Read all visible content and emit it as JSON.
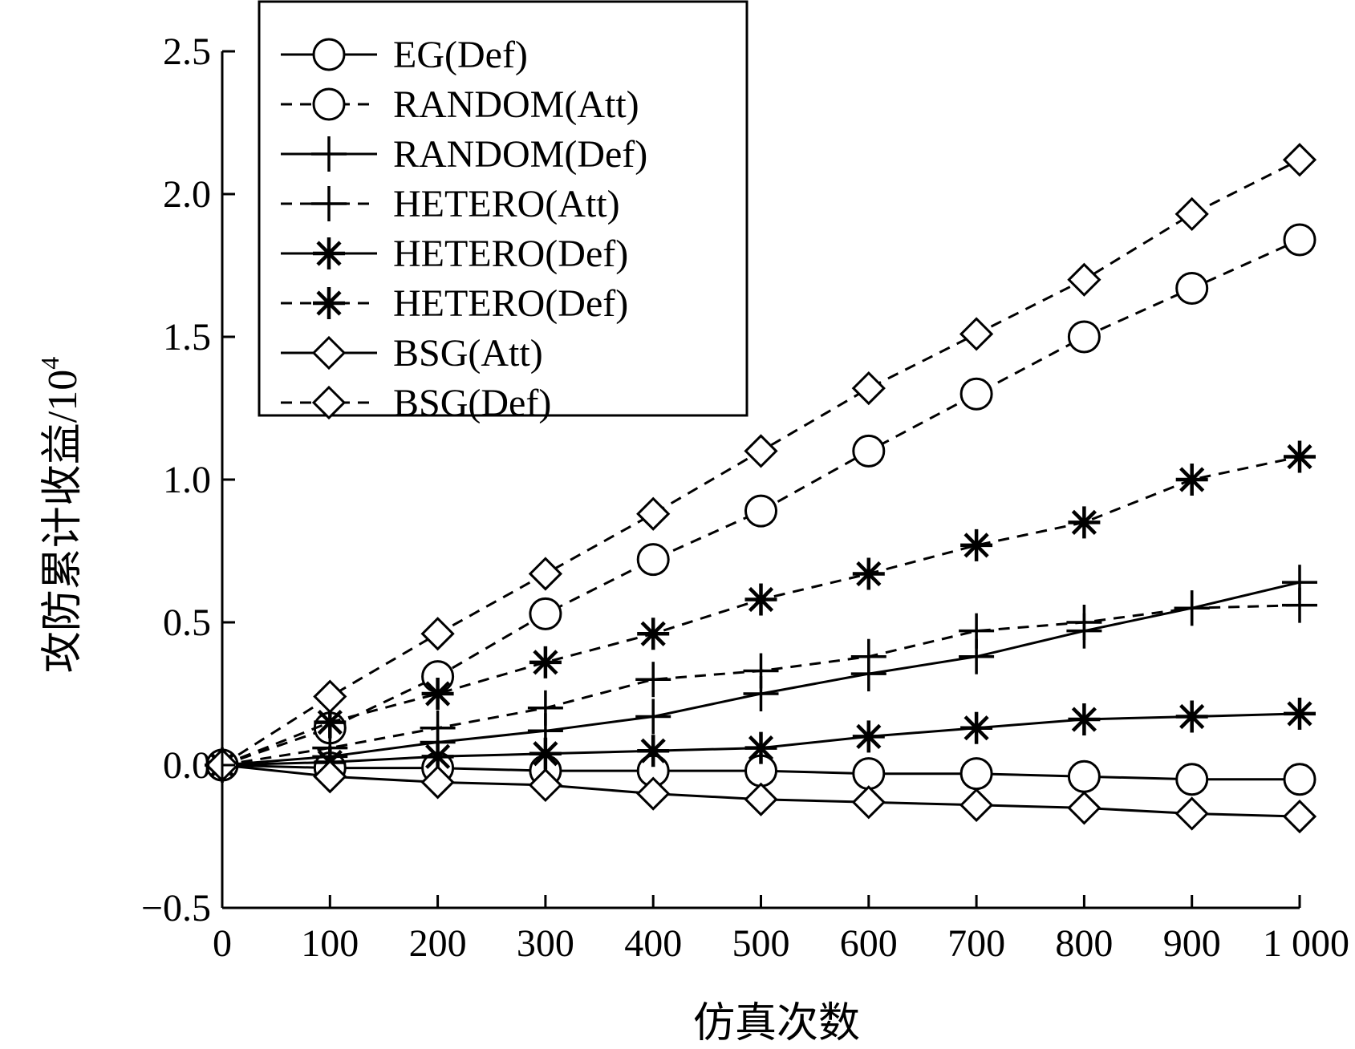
{
  "chart_data": {
    "type": "line",
    "xlabel": "仿真次数",
    "ylabel": "攻防累计收益/10",
    "ylabel_sup": "4",
    "xlim": [
      0,
      1000
    ],
    "ylim": [
      -0.5,
      2.5
    ],
    "x_ticks": [
      0,
      100,
      200,
      300,
      400,
      500,
      600,
      700,
      800,
      900,
      1000
    ],
    "x_tick_labels": [
      "0",
      "100",
      "200",
      "300",
      "400",
      "500",
      "600",
      "700",
      "800",
      "900",
      "1 000"
    ],
    "y_ticks": [
      -0.5,
      0.0,
      0.5,
      1.0,
      1.5,
      2.0,
      2.5
    ],
    "y_tick_labels": [
      "−0.5",
      "0.0",
      "0.5",
      "1.0",
      "1.5",
      "2.0",
      "2.5"
    ],
    "x": [
      0,
      100,
      200,
      300,
      400,
      500,
      600,
      700,
      800,
      900,
      1000
    ],
    "legend_position": "top-left",
    "series": [
      {
        "name": "EG(Def)",
        "line": "solid",
        "marker": "circle",
        "values": [
          0.0,
          -0.01,
          -0.01,
          -0.02,
          -0.02,
          -0.02,
          -0.03,
          -0.03,
          -0.04,
          -0.05,
          -0.05
        ]
      },
      {
        "name": "RANDOM(Att)",
        "line": "dashed",
        "marker": "circle",
        "values": [
          0.0,
          0.13,
          0.31,
          0.53,
          0.72,
          0.89,
          1.1,
          1.3,
          1.5,
          1.67,
          1.84
        ]
      },
      {
        "name": "RANDOM(Def)",
        "line": "solid",
        "marker": "plus",
        "values": [
          0.0,
          0.03,
          0.08,
          0.12,
          0.17,
          0.25,
          0.32,
          0.38,
          0.47,
          0.55,
          0.64
        ]
      },
      {
        "name": "HETERO(Att)",
        "line": "dashed",
        "marker": "plus",
        "values": [
          0.0,
          0.06,
          0.13,
          0.2,
          0.3,
          0.33,
          0.38,
          0.47,
          0.5,
          0.55,
          0.56
        ]
      },
      {
        "name": "HETERO(Def)",
        "line": "solid",
        "marker": "asterisk",
        "values": [
          0.0,
          0.01,
          0.03,
          0.04,
          0.05,
          0.06,
          0.1,
          0.13,
          0.16,
          0.17,
          0.18
        ]
      },
      {
        "name": "HETERO(Def)",
        "line": "dashed",
        "marker": "asterisk",
        "values": [
          0.0,
          0.15,
          0.25,
          0.36,
          0.46,
          0.58,
          0.67,
          0.77,
          0.85,
          1.0,
          1.08
        ]
      },
      {
        "name": "BSG(Att)",
        "line": "solid",
        "marker": "diamond",
        "values": [
          0.0,
          -0.04,
          -0.06,
          -0.07,
          -0.1,
          -0.12,
          -0.13,
          -0.14,
          -0.15,
          -0.17,
          -0.18
        ]
      },
      {
        "name": "BSG(Def)",
        "line": "dashed",
        "marker": "diamond",
        "values": [
          0.0,
          0.24,
          0.46,
          0.67,
          0.88,
          1.1,
          1.32,
          1.51,
          1.7,
          1.93,
          2.12
        ]
      }
    ]
  }
}
